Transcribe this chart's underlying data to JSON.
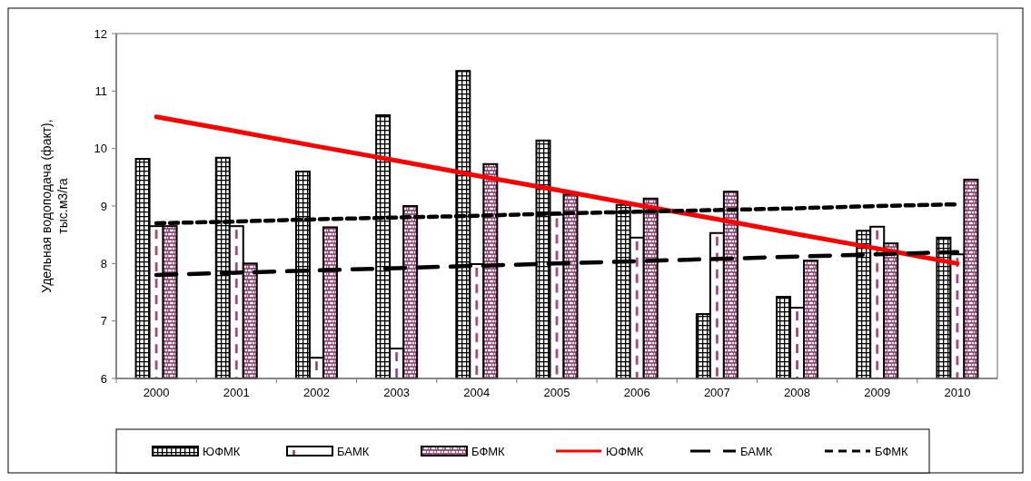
{
  "chart_data": {
    "type": "bar",
    "ylabel": "Удельная водоподача (факт),\nтыс.м3/га",
    "categories": [
      "2000",
      "2001",
      "2002",
      "2003",
      "2004",
      "2005",
      "2006",
      "2007",
      "2008",
      "2009",
      "2010"
    ],
    "series": [
      {
        "name": "ЮФМК",
        "color": "#000000",
        "values": [
          9.82,
          9.84,
          9.6,
          10.58,
          11.35,
          10.14,
          9.02,
          7.12,
          7.42,
          8.57,
          8.45
        ]
      },
      {
        "name": "БАМК",
        "color": "#000000",
        "values": [
          8.65,
          8.65,
          6.36,
          6.52,
          7.99,
          8.85,
          8.45,
          8.53,
          7.23,
          8.64,
          8.16
        ]
      },
      {
        "name": "БФМК",
        "color": "#000000",
        "values": [
          8.65,
          8.0,
          8.63,
          9.0,
          9.73,
          9.2,
          9.13,
          9.25,
          8.05,
          8.35,
          9.46
        ]
      },
      {
        "name": "ЮФМК",
        "type": "line",
        "color": "#ff0000",
        "line_style": "solid",
        "values": [
          10.55,
          10.3,
          10.04,
          9.79,
          9.53,
          9.28,
          9.02,
          8.77,
          8.51,
          8.26,
          8.0
        ]
      },
      {
        "name": "БАМК",
        "type": "line",
        "color": "#000000",
        "line_style": "dashed",
        "values": [
          7.8,
          7.84,
          7.88,
          7.92,
          7.96,
          8.0,
          8.04,
          8.08,
          8.12,
          8.16,
          8.2
        ]
      },
      {
        "name": "БФМК",
        "type": "line",
        "color": "#000000",
        "line_style": "dotted",
        "values": [
          8.7,
          8.73,
          8.77,
          8.8,
          8.83,
          8.87,
          8.9,
          8.93,
          8.96,
          9.0,
          9.03
        ]
      }
    ],
    "ylim": [
      6,
      12
    ],
    "yticks": [
      6,
      7,
      8,
      9,
      10,
      11,
      12
    ],
    "grid": false,
    "legend": "bottom",
    "marker": "none"
  }
}
